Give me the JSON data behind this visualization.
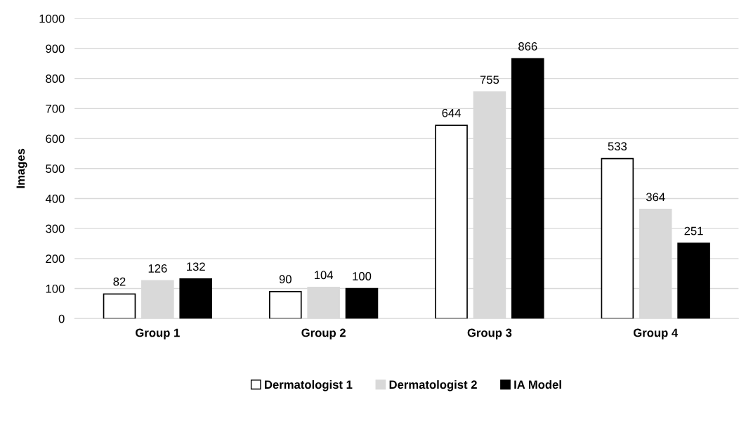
{
  "chart_data": {
    "type": "bar",
    "ylabel": "Images",
    "categories": [
      "Group 1",
      "Group 2",
      "Group 3",
      "Group 4"
    ],
    "series": [
      {
        "name": "Dermatologist 1",
        "color": "#ffffff",
        "values": [
          82,
          90,
          644,
          533
        ]
      },
      {
        "name": "Dermatologist 2",
        "color": "#d9d9d9",
        "values": [
          126,
          104,
          755,
          364
        ]
      },
      {
        "name": "IA Model",
        "color": "#000000",
        "values": [
          132,
          100,
          866,
          251
        ]
      }
    ],
    "ylim": [
      0,
      1000
    ],
    "yticks": [
      0,
      100,
      200,
      300,
      400,
      500,
      600,
      700,
      800,
      900,
      1000
    ],
    "grid": "y",
    "legend": "bottom",
    "data_labels": true
  }
}
